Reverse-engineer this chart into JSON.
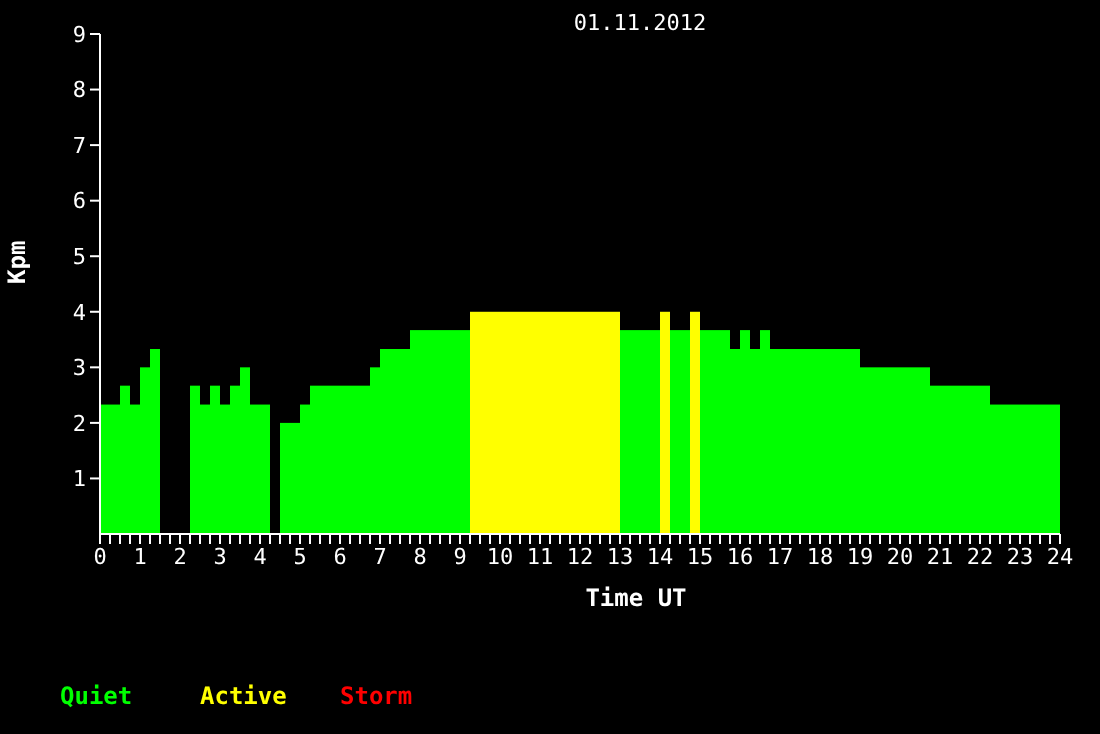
{
  "chart_data": {
    "type": "histogram",
    "title": "01.11.2012",
    "xlabel": "Time UT",
    "ylabel": "Kpm",
    "bins": [
      0,
      0.5,
      0.75,
      1,
      1.25,
      1.5,
      2.25,
      2.5,
      2.75,
      3,
      3.25,
      3.5,
      3.75,
      4.25,
      4.5,
      5,
      5.25,
      6.75,
      7,
      7.75,
      9.25,
      13,
      14,
      14.25,
      14.75,
      15,
      15.75,
      16,
      16.25,
      16.5,
      16.75,
      19,
      20.75,
      22.25,
      24
    ],
    "series": [
      {
        "name": "Quiet",
        "color": "#00ff00",
        "values": [
          2.33,
          2.67,
          2.33,
          3,
          3.33,
          0,
          2.67,
          2.33,
          2.67,
          2.33,
          2.67,
          3,
          2.33,
          0,
          2,
          2.33,
          2.67,
          3,
          3.33,
          3.67,
          null,
          3.67,
          null,
          3.67,
          null,
          3.67,
          3.33,
          3.67,
          3.33,
          3.67,
          3.33,
          3,
          2.67,
          2.33
        ]
      },
      {
        "name": "Active",
        "color": "#ffff00",
        "values": [
          null,
          null,
          null,
          null,
          null,
          null,
          null,
          null,
          null,
          null,
          null,
          null,
          null,
          null,
          null,
          null,
          null,
          null,
          null,
          null,
          4,
          null,
          4,
          null,
          4,
          null,
          null,
          null,
          null,
          null,
          null,
          null,
          null,
          null
        ]
      }
    ],
    "annotations": [
      "Storm"
    ],
    "xlim": [
      0,
      24
    ],
    "xticks": [
      0,
      {
        "value": 0.25,
        "label": null
      },
      {
        "value": 0.5,
        "label": null
      },
      {
        "value": 0.75,
        "label": null
      },
      1,
      {
        "value": 1.25,
        "label": null
      },
      {
        "value": 1.5,
        "label": null
      },
      {
        "value": 1.75,
        "label": null
      },
      2,
      {
        "value": 2.25,
        "label": null
      },
      {
        "value": 2.5,
        "label": null
      },
      {
        "value": 2.75,
        "label": null
      },
      3,
      {
        "value": 3.25,
        "label": null
      },
      {
        "value": 3.5,
        "label": null
      },
      {
        "value": 3.75,
        "label": null
      },
      4,
      {
        "value": 4.25,
        "label": null
      },
      {
        "value": 4.5,
        "label": null
      },
      {
        "value": 4.75,
        "label": null
      },
      5,
      {
        "value": 5.25,
        "label": null
      },
      {
        "value": 5.5,
        "label": null
      },
      {
        "value": 5.75,
        "label": null
      },
      6,
      {
        "value": 6.25,
        "label": null
      },
      {
        "value": 6.5,
        "label": null
      },
      {
        "value": 6.75,
        "label": null
      },
      7,
      {
        "value": 7.25,
        "label": null
      },
      {
        "value": 7.5,
        "label": null
      },
      {
        "value": 7.75,
        "label": null
      },
      8,
      {
        "value": 8.25,
        "label": null
      },
      {
        "value": 8.5,
        "label": null
      },
      {
        "value": 8.75,
        "label": null
      },
      9,
      {
        "value": 9.25,
        "label": null
      },
      {
        "value": 9.5,
        "label": null
      },
      {
        "value": 9.75,
        "label": null
      },
      10,
      {
        "value": 10.25,
        "label": null
      },
      {
        "value": 10.5,
        "label": null
      },
      {
        "value": 10.75,
        "label": null
      },
      11,
      {
        "value": 11.25,
        "label": null
      },
      {
        "value": 11.5,
        "label": null
      },
      {
        "value": 11.75,
        "label": null
      },
      12,
      {
        "value": 12.25,
        "label": null
      },
      {
        "value": 12.5,
        "label": null
      },
      {
        "value": 12.75,
        "label": null
      },
      13,
      {
        "value": 13.25,
        "label": null
      },
      {
        "value": 13.5,
        "label": null
      },
      {
        "value": 13.75,
        "label": null
      },
      14,
      {
        "value": 14.25,
        "label": null
      },
      {
        "value": 14.5,
        "label": null
      },
      {
        "value": 14.75,
        "label": null
      },
      15,
      {
        "value": 15.25,
        "label": null
      },
      {
        "value": 15.5,
        "label": null
      },
      {
        "value": 15.75,
        "label": null
      },
      16,
      {
        "value": 16.25,
        "label": null
      },
      {
        "value": 16.5,
        "label": null
      },
      {
        "value": 16.75,
        "label": null
      },
      17,
      {
        "value": 17.25,
        "label": null
      },
      {
        "value": 17.5,
        "label": null
      },
      {
        "value": 17.75,
        "label": null
      },
      18,
      {
        "value": 18.25,
        "label": null
      },
      {
        "value": 18.5,
        "label": null
      },
      {
        "value": 18.75,
        "label": null
      },
      19,
      {
        "value": 19.25,
        "label": null
      },
      {
        "value": 19.5,
        "label": null
      },
      {
        "value": 19.75,
        "label": null
      },
      20,
      {
        "value": 20.25,
        "label": null
      },
      {
        "value": 20.5,
        "label": null
      },
      {
        "value": 20.75,
        "label": null
      },
      21,
      {
        "value": 21.25,
        "label": null
      },
      {
        "value": 21.5,
        "label": null
      },
      {
        "value": 21.75,
        "label": null
      },
      22,
      {
        "value": 22.25,
        "label": null
      },
      {
        "value": 22.5,
        "label": null
      },
      {
        "value": 22.75,
        "label": null
      },
      23,
      {
        "value": 23.25,
        "label": null
      },
      {
        "value": 23.5,
        "label": null
      },
      {
        "value": 23.75,
        "label": null
      },
      24
    ],
    "ylim": [
      0,
      9
    ],
    "yticks": [
      1,
      2,
      3,
      4,
      5,
      6,
      7,
      8,
      9
    ],
    "legend": "bottom left"
  }
}
